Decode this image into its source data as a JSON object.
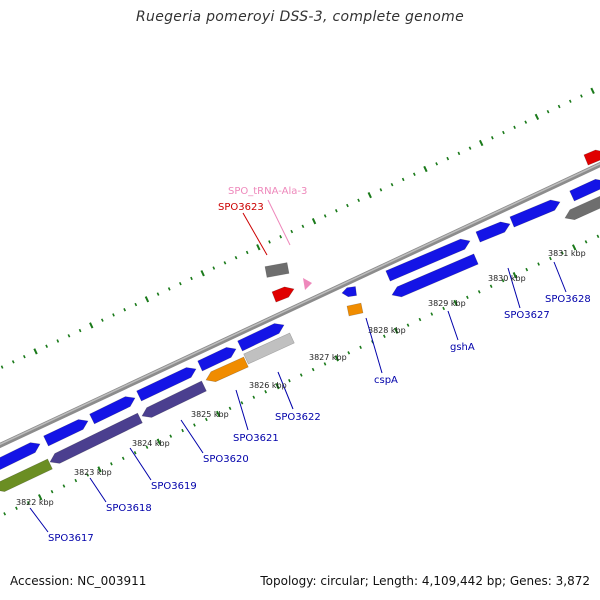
{
  "title": "Ruegeria pomeroyi DSS-3, complete genome",
  "footer": {
    "accession": "Accession: NC_003911",
    "summary": "Topology: circular; Length: 4,109,442 bp; Genes: 3,872"
  },
  "colors": {
    "cds_blue": "#1414e6",
    "cds_purple": "#4b3f8f",
    "cds_green": "#6b8e23",
    "cds_orange": "#f08c00",
    "cds_gray": "#6e6e6e",
    "cds_lightgray": "#c0c0c0",
    "cds_red": "#e00000",
    "trna_pink": "#ee88bb",
    "backbone": "#8c8c8c",
    "tick_green": "#1a7a1a",
    "label_blue": "#0000aa",
    "label_red": "#cc0000",
    "label_pink": "#ee88bb"
  },
  "kbp_labels": [
    "3822 kbp",
    "3823 kbp",
    "3824 kbp",
    "3825 kbp",
    "3826 kbp",
    "3827 kbp",
    "3828 kbp",
    "3829 kbp",
    "3830 kbp",
    "3831 kbp"
  ],
  "gene_labels": {
    "SPO3617": "SPO3617",
    "SPO3618": "SPO3618",
    "SPO3619": "SPO3619",
    "SPO3620": "SPO3620",
    "SPO3621": "SPO3621",
    "SPO3622": "SPO3622",
    "cspA": "cspA",
    "gshA": "gshA",
    "SPO3627": "SPO3627",
    "SPO3628": "SPO3628",
    "SPO3623": "SPO3623",
    "trna": "SPO_tRNA-Ala-3"
  }
}
